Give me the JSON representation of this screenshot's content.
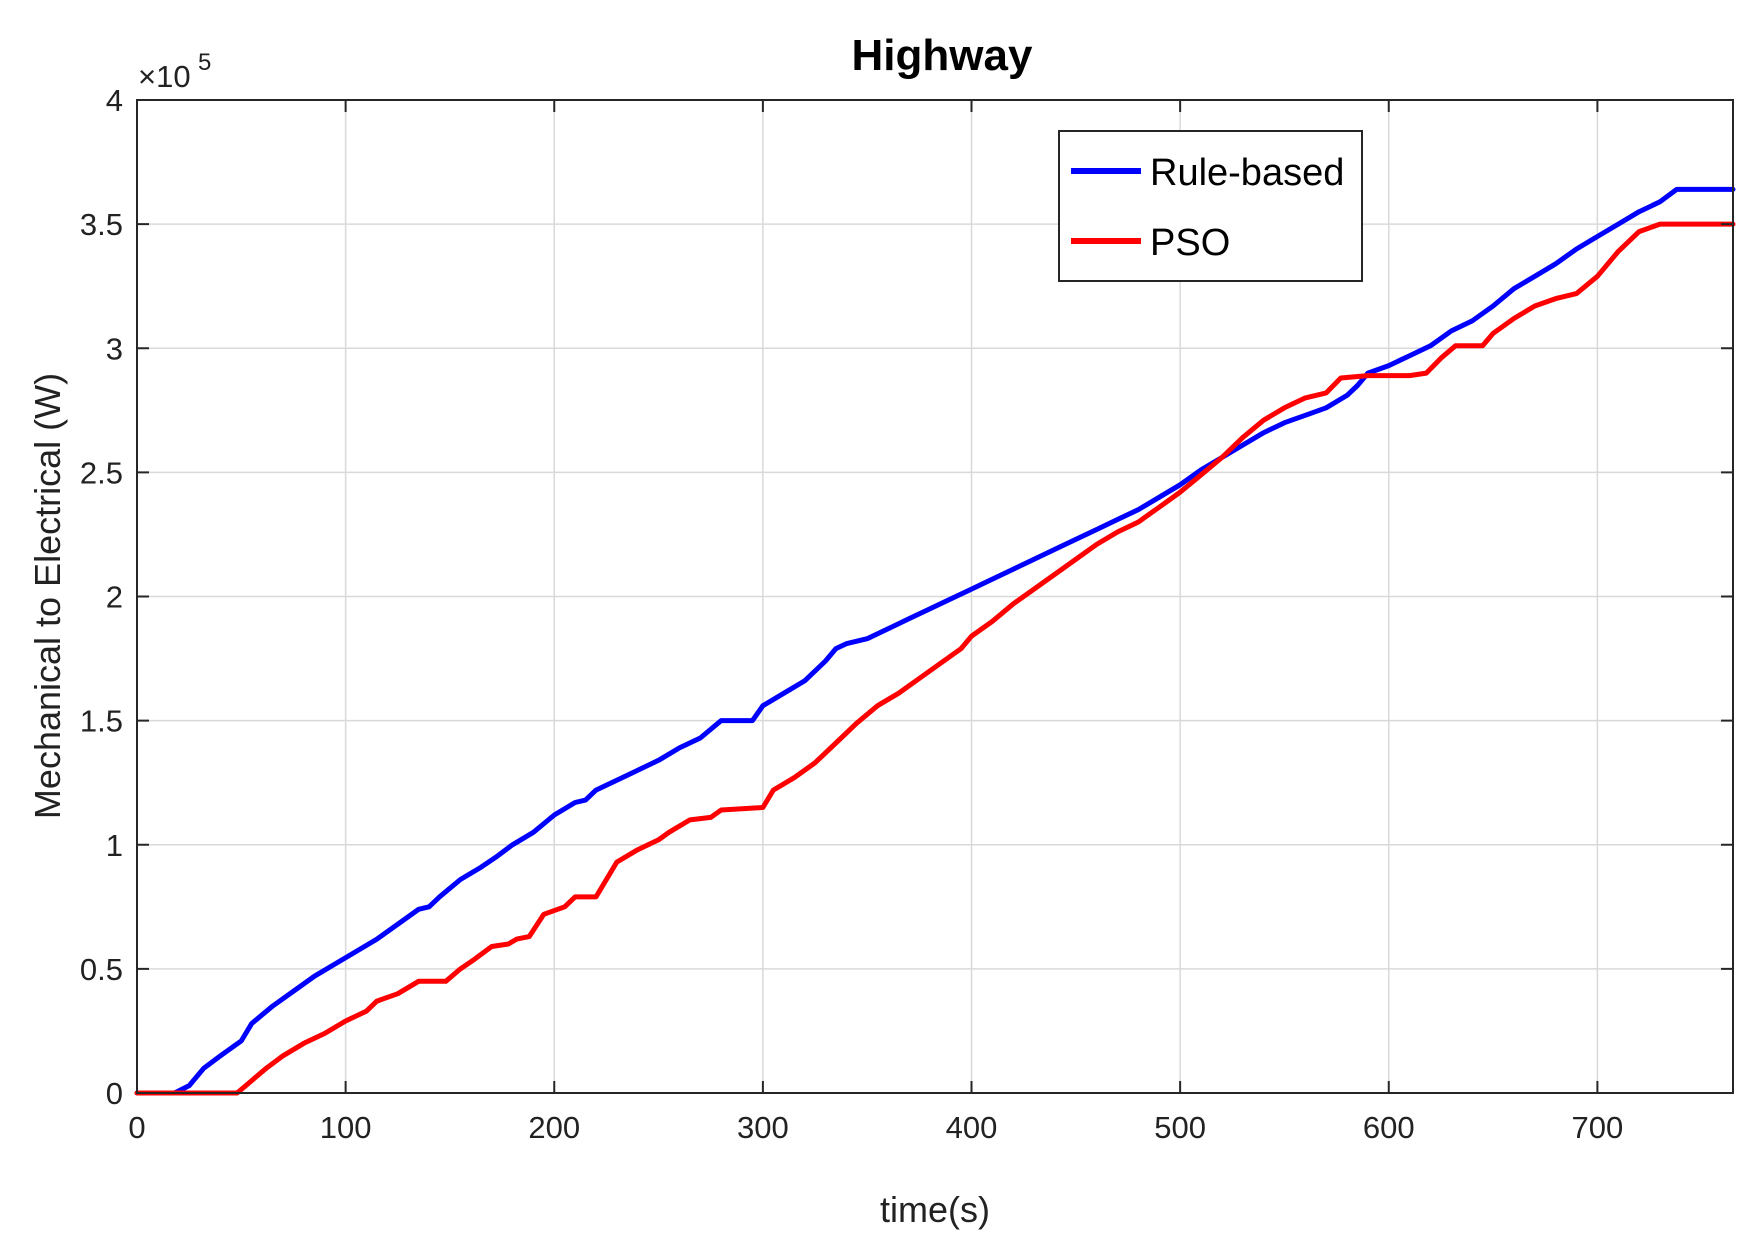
{
  "chart_data": {
    "type": "line",
    "title": "Highway",
    "xlabel": "time(s)",
    "ylabel": "Mechanical to Electrical (W)",
    "y_exponent_label": "×10",
    "y_exponent_power": "5",
    "xlim": [
      0,
      765
    ],
    "ylim": [
      0,
      4
    ],
    "x_ticks": [
      0,
      100,
      200,
      300,
      400,
      500,
      600,
      700
    ],
    "y_ticks": [
      0,
      0.5,
      1,
      1.5,
      2,
      2.5,
      3,
      3.5,
      4
    ],
    "x_tick_labels": [
      "0",
      "100",
      "200",
      "300",
      "400",
      "500",
      "600",
      "700"
    ],
    "y_tick_labels": [
      "0",
      "0.5",
      "1",
      "1.5",
      "2",
      "2.5",
      "3",
      "3.5",
      "4"
    ],
    "grid": true,
    "legend_position": "top-right",
    "series": [
      {
        "name": "Rule-based",
        "color": "#0000ff",
        "points": [
          [
            0,
            0
          ],
          [
            18,
            0
          ],
          [
            25,
            0.03
          ],
          [
            32,
            0.1
          ],
          [
            40,
            0.15
          ],
          [
            50,
            0.21
          ],
          [
            55,
            0.28
          ],
          [
            65,
            0.35
          ],
          [
            75,
            0.41
          ],
          [
            85,
            0.47
          ],
          [
            95,
            0.52
          ],
          [
            105,
            0.57
          ],
          [
            115,
            0.62
          ],
          [
            125,
            0.68
          ],
          [
            135,
            0.74
          ],
          [
            140,
            0.75
          ],
          [
            145,
            0.79
          ],
          [
            155,
            0.86
          ],
          [
            165,
            0.91
          ],
          [
            172,
            0.95
          ],
          [
            180,
            1.0
          ],
          [
            190,
            1.05
          ],
          [
            200,
            1.12
          ],
          [
            210,
            1.17
          ],
          [
            215,
            1.18
          ],
          [
            220,
            1.22
          ],
          [
            230,
            1.26
          ],
          [
            240,
            1.3
          ],
          [
            250,
            1.34
          ],
          [
            260,
            1.39
          ],
          [
            270,
            1.43
          ],
          [
            280,
            1.5
          ],
          [
            295,
            1.5
          ],
          [
            300,
            1.56
          ],
          [
            310,
            1.61
          ],
          [
            320,
            1.66
          ],
          [
            330,
            1.74
          ],
          [
            335,
            1.79
          ],
          [
            340,
            1.81
          ],
          [
            350,
            1.83
          ],
          [
            360,
            1.87
          ],
          [
            370,
            1.91
          ],
          [
            380,
            1.95
          ],
          [
            390,
            1.99
          ],
          [
            400,
            2.03
          ],
          [
            410,
            2.07
          ],
          [
            420,
            2.11
          ],
          [
            430,
            2.15
          ],
          [
            440,
            2.19
          ],
          [
            450,
            2.23
          ],
          [
            460,
            2.27
          ],
          [
            470,
            2.31
          ],
          [
            480,
            2.35
          ],
          [
            490,
            2.4
          ],
          [
            500,
            2.45
          ],
          [
            510,
            2.51
          ],
          [
            520,
            2.56
          ],
          [
            530,
            2.61
          ],
          [
            540,
            2.66
          ],
          [
            550,
            2.7
          ],
          [
            560,
            2.73
          ],
          [
            570,
            2.76
          ],
          [
            580,
            2.81
          ],
          [
            585,
            2.85
          ],
          [
            590,
            2.9
          ],
          [
            600,
            2.93
          ],
          [
            610,
            2.97
          ],
          [
            620,
            3.01
          ],
          [
            630,
            3.07
          ],
          [
            640,
            3.11
          ],
          [
            650,
            3.17
          ],
          [
            660,
            3.24
          ],
          [
            670,
            3.29
          ],
          [
            680,
            3.34
          ],
          [
            690,
            3.4
          ],
          [
            700,
            3.45
          ],
          [
            710,
            3.5
          ],
          [
            720,
            3.55
          ],
          [
            730,
            3.59
          ],
          [
            738,
            3.64
          ],
          [
            765,
            3.64
          ]
        ]
      },
      {
        "name": "PSO",
        "color": "#ff0000",
        "points": [
          [
            0,
            0
          ],
          [
            48,
            0
          ],
          [
            55,
            0.05
          ],
          [
            62,
            0.1
          ],
          [
            70,
            0.15
          ],
          [
            80,
            0.2
          ],
          [
            90,
            0.24
          ],
          [
            100,
            0.29
          ],
          [
            110,
            0.33
          ],
          [
            115,
            0.37
          ],
          [
            125,
            0.4
          ],
          [
            135,
            0.45
          ],
          [
            148,
            0.45
          ],
          [
            155,
            0.5
          ],
          [
            162,
            0.54
          ],
          [
            170,
            0.59
          ],
          [
            178,
            0.6
          ],
          [
            182,
            0.62
          ],
          [
            188,
            0.63
          ],
          [
            195,
            0.72
          ],
          [
            205,
            0.75
          ],
          [
            210,
            0.79
          ],
          [
            220,
            0.79
          ],
          [
            230,
            0.93
          ],
          [
            240,
            0.98
          ],
          [
            250,
            1.02
          ],
          [
            255,
            1.05
          ],
          [
            265,
            1.1
          ],
          [
            275,
            1.11
          ],
          [
            280,
            1.14
          ],
          [
            300,
            1.15
          ],
          [
            305,
            1.22
          ],
          [
            315,
            1.27
          ],
          [
            325,
            1.33
          ],
          [
            335,
            1.41
          ],
          [
            345,
            1.49
          ],
          [
            355,
            1.56
          ],
          [
            365,
            1.61
          ],
          [
            375,
            1.67
          ],
          [
            385,
            1.73
          ],
          [
            395,
            1.79
          ],
          [
            400,
            1.84
          ],
          [
            410,
            1.9
          ],
          [
            420,
            1.97
          ],
          [
            430,
            2.03
          ],
          [
            440,
            2.09
          ],
          [
            450,
            2.15
          ],
          [
            460,
            2.21
          ],
          [
            470,
            2.26
          ],
          [
            480,
            2.3
          ],
          [
            490,
            2.36
          ],
          [
            500,
            2.42
          ],
          [
            510,
            2.49
          ],
          [
            520,
            2.56
          ],
          [
            530,
            2.64
          ],
          [
            540,
            2.71
          ],
          [
            550,
            2.76
          ],
          [
            560,
            2.8
          ],
          [
            570,
            2.82
          ],
          [
            577,
            2.88
          ],
          [
            590,
            2.89
          ],
          [
            600,
            2.89
          ],
          [
            610,
            2.89
          ],
          [
            618,
            2.9
          ],
          [
            625,
            2.96
          ],
          [
            632,
            3.01
          ],
          [
            645,
            3.01
          ],
          [
            650,
            3.06
          ],
          [
            660,
            3.12
          ],
          [
            670,
            3.17
          ],
          [
            680,
            3.2
          ],
          [
            690,
            3.22
          ],
          [
            700,
            3.29
          ],
          [
            710,
            3.39
          ],
          [
            720,
            3.47
          ],
          [
            730,
            3.5
          ],
          [
            765,
            3.5
          ]
        ]
      }
    ]
  }
}
